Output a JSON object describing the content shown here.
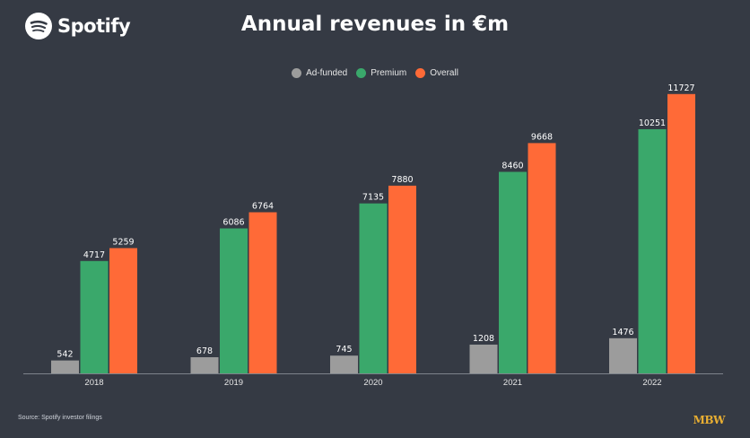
{
  "brand": {
    "name": "Spotify",
    "icon": "spotify-logo-icon"
  },
  "chart_data": {
    "type": "bar",
    "title": "Annual revenues in €m",
    "xlabel": "",
    "ylabel": "",
    "ylim": [
      0,
      13000
    ],
    "grid": false,
    "legend_position": "top-center",
    "categories": [
      "2018",
      "2019",
      "2020",
      "2021",
      "2022"
    ],
    "series": [
      {
        "name": "Ad-funded",
        "color": "#9c9c9c",
        "values": [
          542,
          678,
          745,
          1208,
          1476
        ]
      },
      {
        "name": "Premium",
        "color": "#3aa86b",
        "values": [
          4717,
          6086,
          7135,
          8460,
          10251
        ]
      },
      {
        "name": "Overall",
        "color": "#ff6a37",
        "values": [
          5259,
          6764,
          7880,
          9668,
          11727
        ]
      }
    ]
  },
  "footer": {
    "source": "Source: Spotify investor filings",
    "publisher": "MBW"
  }
}
